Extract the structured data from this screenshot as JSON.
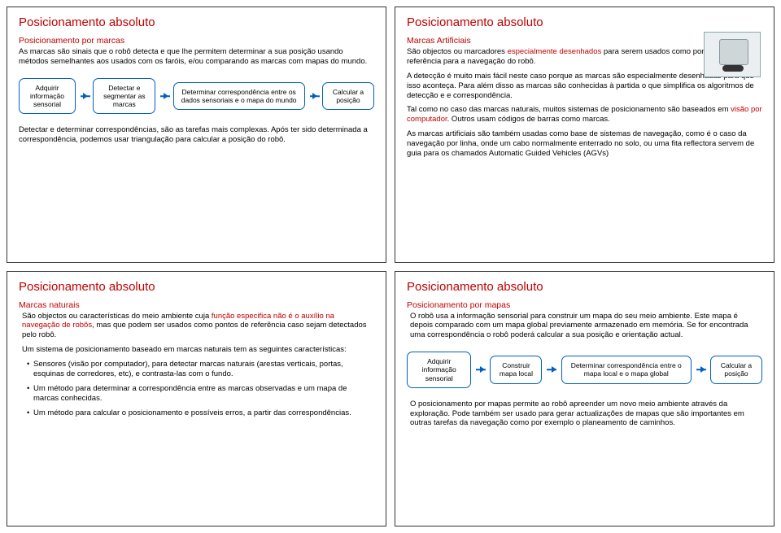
{
  "colors": {
    "accent": "#c00000",
    "box_border": "#0060c0",
    "slide_border": "#333333",
    "bg": "#ffffff",
    "text": "#000000"
  },
  "slide1": {
    "title": "Posicionamento absoluto",
    "subtitle": "Posicionamento por marcas",
    "p1": "As marcas são sinais que o robô detecta e que lhe permitem determinar a sua posição usando métodos semelhantes aos usados com os faróis, e/ou comparando as marcas com mapas do mundo.",
    "box1": "Adquirir informação sensorial",
    "box2": "Detectar e segmentar as marcas",
    "box3": "Determinar correspondência entre os dados sensoriais e o mapa do mundo",
    "box4": "Calcular a posição",
    "p2": "Detectar e determinar correspondências, são as tarefas mais complexas. Após ter sido determinada a correspondência, podemos usar triangulação para calcular a posição do robô."
  },
  "slide2": {
    "title": "Posicionamento absoluto",
    "subtitle": "Marcas Artificiais",
    "p1a": "São objectos ou marcadores ",
    "p1b": "especialmente desenhados",
    "p1c": " para serem usados como pontos de referência para a navegação do robô.",
    "p2": "A detecção é muito mais fácil neste caso porque as marcas são especialmente desenhadas para que isso aconteça. Para além disso as marcas são conhecidas à partida o que simplifica os algoritmos de detecção e e correspondência.",
    "p3a": "Tal como no caso das marcas naturais, muitos sistemas de posicionamento são baseados em ",
    "p3b": "visão por computador",
    "p3c": ". Outros usam códigos de barras como marcas.",
    "p4": "As marcas artificiais são também usadas como base de sistemas de navegação, como é o caso da navegação por linha, onde um cabo normalmente enterrado no solo, ou uma fita reflectora servem de guia para os chamados Automatic Guided Vehicles (AGVs)"
  },
  "slide3": {
    "title": "Posicionamento absoluto",
    "subtitle": "Marcas naturais",
    "p1a": "São objectos ou características do meio ambiente cuja ",
    "p1b": "função especifica não é o auxílio na navegação de robôs",
    "p1c": ", mas que podem ser usados como pontos de referência caso sejam detectados pelo robô.",
    "p2": "Um sistema de posicionamento baseado em marcas naturais tem as seguintes características:",
    "b1": "Sensores (visão por computador), para detectar marcas naturais (arestas verticais, portas, esquinas de corredores, etc), e contrasta-las com o fundo.",
    "b2": "Um método para determinar a correspondência entre as marcas observadas e um mapa de marcas conhecidas.",
    "b3": "Um método para calcular o posicionamento e possíveis erros, a partir das correspondências."
  },
  "slide4": {
    "title": "Posicionamento absoluto",
    "subtitle": "Posicionamento por mapas",
    "p1": "O robô usa a informação sensorial para construir um mapa do seu meio ambiente. Este mapa é depois comparado com um mapa global previamente armazenado em memória. Se for encontrada uma correspondência o robô poderá calcular a sua posição e orientação actual.",
    "box1": "Adquirir informação sensorial",
    "box2": "Construir mapa local",
    "box3": "Determinar correspondência entre o mapa local e o mapa global",
    "box4": "Calcular a posição",
    "p2": "O posicionamento por mapas permite ao robô apreender um novo meio ambiente através da exploração. Pode também ser usado para gerar actualizações de mapas que são importantes em outras tarefas da navegação como por exemplo o planeamento de caminhos."
  }
}
